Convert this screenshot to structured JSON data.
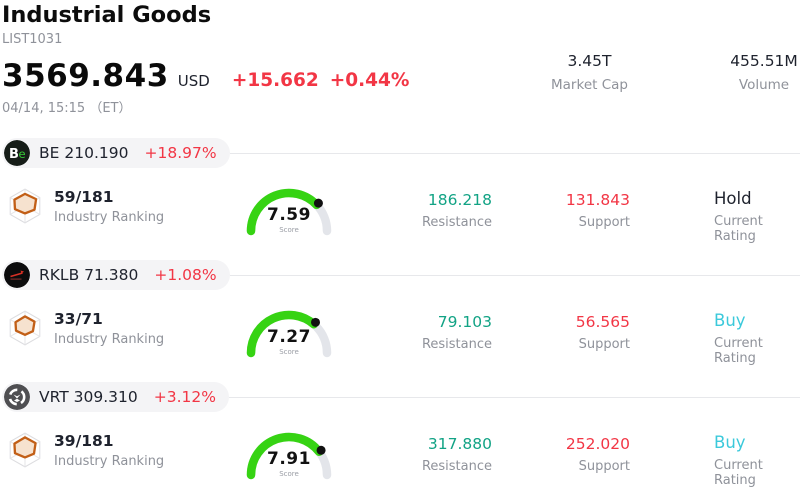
{
  "header": {
    "title": "Industrial Goods",
    "list_id": "LIST1031",
    "price": "3569.843",
    "currency": "USD",
    "change": "+15.662",
    "change_pct": "+0.44%",
    "timestamp": "04/14, 15:15 （ET）",
    "stats": [
      {
        "value": "3.45T",
        "label": "Market Cap"
      },
      {
        "value": "455.51M",
        "label": "Volume"
      }
    ]
  },
  "colors": {
    "red": "#f23645",
    "resistance_teal": "#12a385",
    "buy_cyan": "#3bc9db",
    "gauge_green": "#36d313",
    "gauge_track": "#e3e5ea",
    "gauge_dot": "#111111",
    "pill_bg": "#f4f4f6"
  },
  "rows": [
    {
      "ticker": "BE",
      "price": "210.190",
      "change_pct": "+18.97%",
      "logo_icon": "bloom-energy-logo",
      "ranking": "59/181",
      "ranking_label": "Industry Ranking",
      "score": 7.59,
      "score_display": "7.59",
      "score_label": "Score",
      "resistance": "186.218",
      "resistance_label": "Resistance",
      "support": "131.843",
      "support_label": "Support",
      "rating": "Hold",
      "rating_label": "Current Rating",
      "rating_class": "c-neutral"
    },
    {
      "ticker": "RKLB",
      "price": "71.380",
      "change_pct": "+1.08%",
      "logo_icon": "rocket-lab-logo",
      "ranking": "33/71",
      "ranking_label": "Industry Ranking",
      "score": 7.27,
      "score_display": "7.27",
      "score_label": "Score",
      "resistance": "79.103",
      "resistance_label": "Resistance",
      "support": "56.565",
      "support_label": "Support",
      "rating": "Buy",
      "rating_label": "Current Rating",
      "rating_class": "c-buy"
    },
    {
      "ticker": "VRT",
      "price": "309.310",
      "change_pct": "+3.12%",
      "logo_icon": "vertiv-logo",
      "ranking": "39/181",
      "ranking_label": "Industry Ranking",
      "score": 7.91,
      "score_display": "7.91",
      "score_label": "Score",
      "resistance": "317.880",
      "resistance_label": "Resistance",
      "support": "252.020",
      "support_label": "Support",
      "rating": "Buy",
      "rating_label": "Current Rating",
      "rating_class": "c-buy"
    }
  ]
}
